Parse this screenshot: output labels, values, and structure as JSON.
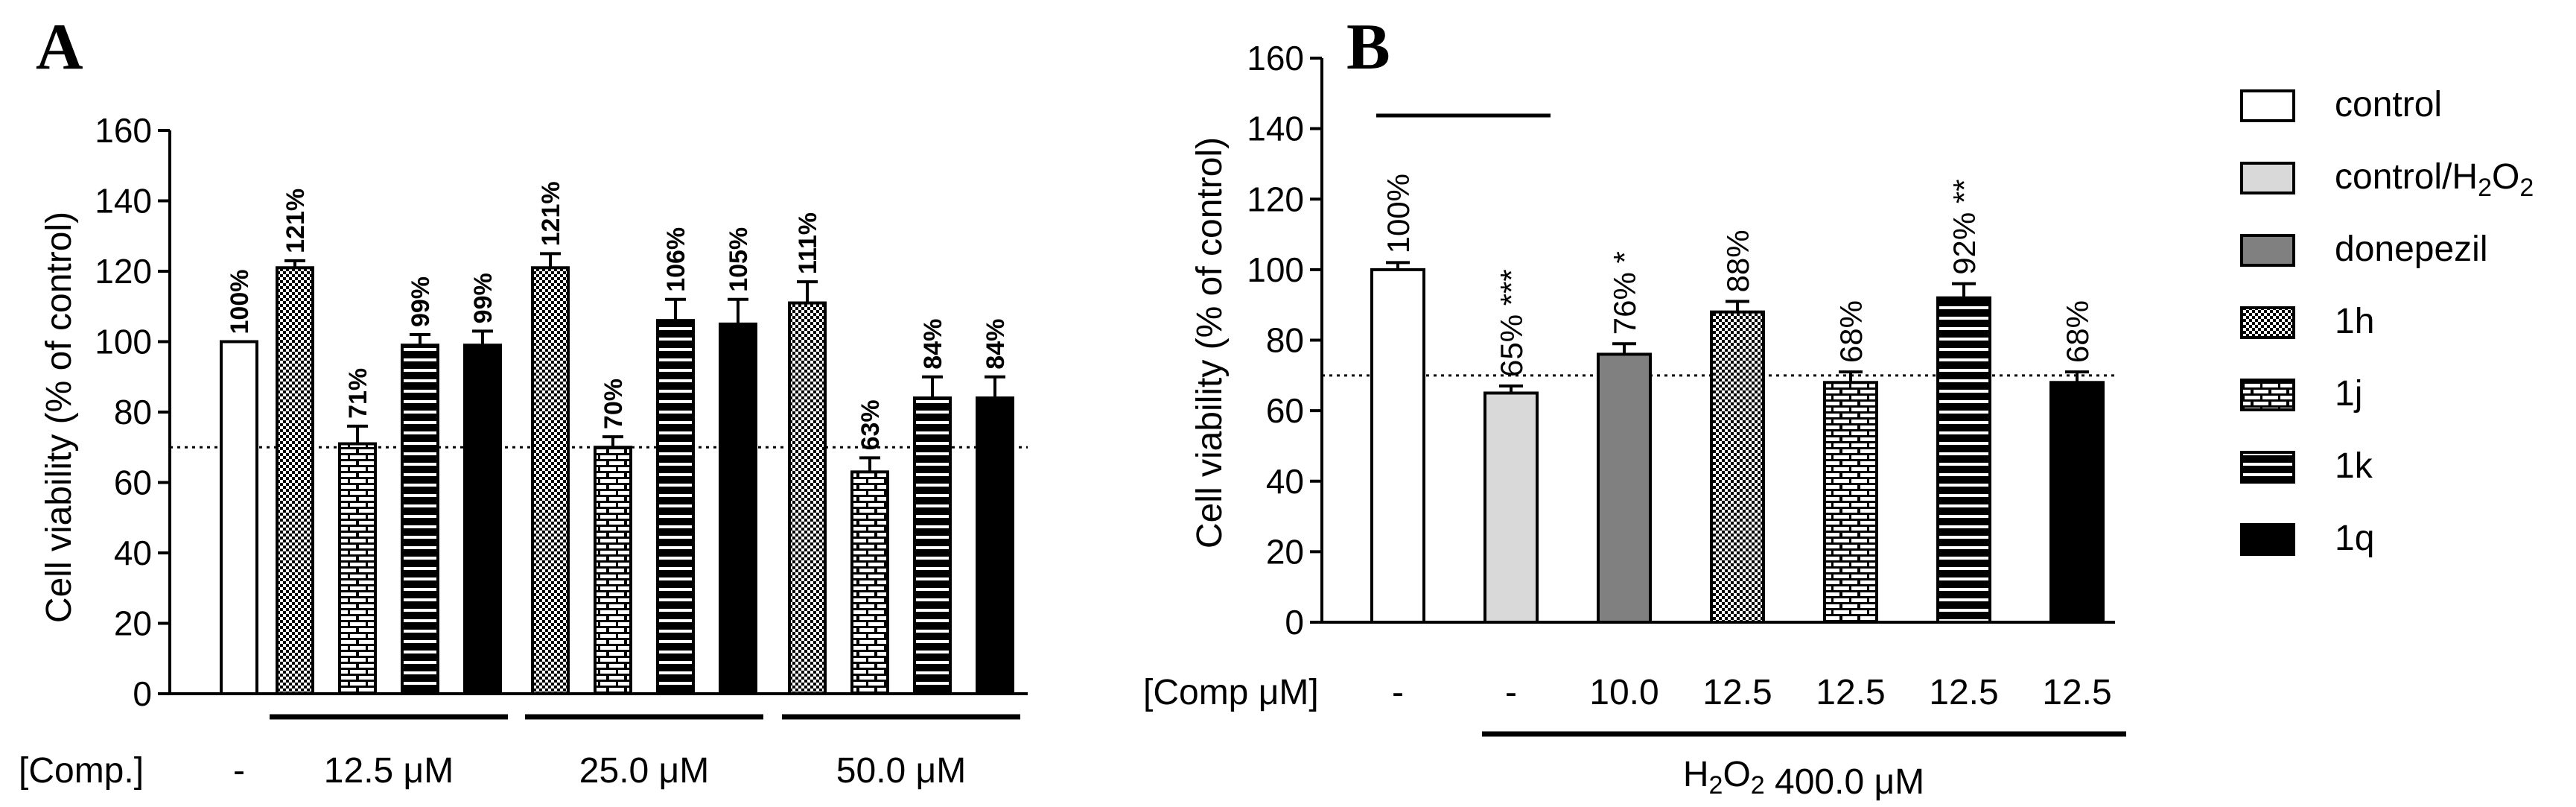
{
  "chart_data": [
    {
      "panel": "A",
      "type": "bar",
      "ylabel": "Cell viability (% of control)",
      "ylim": [
        0,
        160
      ],
      "yticks": [
        0,
        20,
        40,
        60,
        80,
        100,
        120,
        140,
        160
      ],
      "reference_line": 70,
      "row_label": "[Comp.]",
      "groups": [
        {
          "label": "-",
          "bars": [
            {
              "series": "control",
              "value": 100,
              "error": 0,
              "label": "100%"
            }
          ]
        },
        {
          "label": "12.5 μM",
          "bars": [
            {
              "series": "1h",
              "value": 121,
              "error": 2,
              "label": "121%"
            },
            {
              "series": "1j",
              "value": 71,
              "error": 5,
              "label": "71%"
            },
            {
              "series": "1k",
              "value": 99,
              "error": 3,
              "label": "99%"
            },
            {
              "series": "1q",
              "value": 99,
              "error": 4,
              "label": "99%"
            }
          ]
        },
        {
          "label": "25.0 μM",
          "bars": [
            {
              "series": "1h",
              "value": 121,
              "error": 4,
              "label": "121%"
            },
            {
              "series": "1j",
              "value": 70,
              "error": 3,
              "label": "70%"
            },
            {
              "series": "1k",
              "value": 106,
              "error": 6,
              "label": "106%"
            },
            {
              "series": "1q",
              "value": 105,
              "error": 7,
              "label": "105%"
            }
          ]
        },
        {
          "label": "50.0 μM",
          "bars": [
            {
              "series": "1h",
              "value": 111,
              "error": 6,
              "label": "111%"
            },
            {
              "series": "1j",
              "value": 63,
              "error": 4,
              "label": "63%"
            },
            {
              "series": "1k",
              "value": 84,
              "error": 6,
              "label": "84%"
            },
            {
              "series": "1q",
              "value": 84,
              "error": 6,
              "label": "84%"
            }
          ]
        }
      ]
    },
    {
      "panel": "B",
      "type": "bar",
      "ylabel": "Cell viability (% of control)",
      "ylim": [
        0,
        160
      ],
      "yticks": [
        0,
        20,
        40,
        60,
        80,
        100,
        120,
        140,
        160
      ],
      "reference_line": 70,
      "row_label": "[Comp  μM]",
      "treatment_label": "H2O2 400.0 μM",
      "bars": [
        {
          "series": "control",
          "value": 100,
          "error": 2,
          "label": "100%",
          "sig": "",
          "conc": "-"
        },
        {
          "series": "control/H2O2",
          "value": 65,
          "error": 2,
          "label": "65%",
          "sig": "***",
          "conc": "-"
        },
        {
          "series": "donepezil",
          "value": 76,
          "error": 3,
          "label": "76%",
          "sig": "*",
          "conc": "10.0"
        },
        {
          "series": "1h",
          "value": 88,
          "error": 3,
          "label": "88%",
          "sig": "",
          "conc": "12.5"
        },
        {
          "series": "1j",
          "value": 68,
          "error": 3,
          "label": "68%",
          "sig": "",
          "conc": "12.5"
        },
        {
          "series": "1k",
          "value": 92,
          "error": 4,
          "label": "92%",
          "sig": "**",
          "conc": "12.5"
        },
        {
          "series": "1q",
          "value": 68,
          "error": 3,
          "label": "68%",
          "sig": "",
          "conc": "12.5"
        }
      ]
    }
  ],
  "legend": [
    {
      "series": "control",
      "label": "control"
    },
    {
      "series": "control/H2O2",
      "label": "control/H2O2"
    },
    {
      "series": "donepezil",
      "label": "donepezil"
    },
    {
      "series": "1h",
      "label": "1h"
    },
    {
      "series": "1j",
      "label": "1j"
    },
    {
      "series": "1k",
      "label": "1k"
    },
    {
      "series": "1q",
      "label": "1q"
    }
  ],
  "colors": {
    "control": "#ffffff",
    "control_h2o2": "#d9d9d9",
    "donepezil": "#808080",
    "ink": "#000000"
  }
}
